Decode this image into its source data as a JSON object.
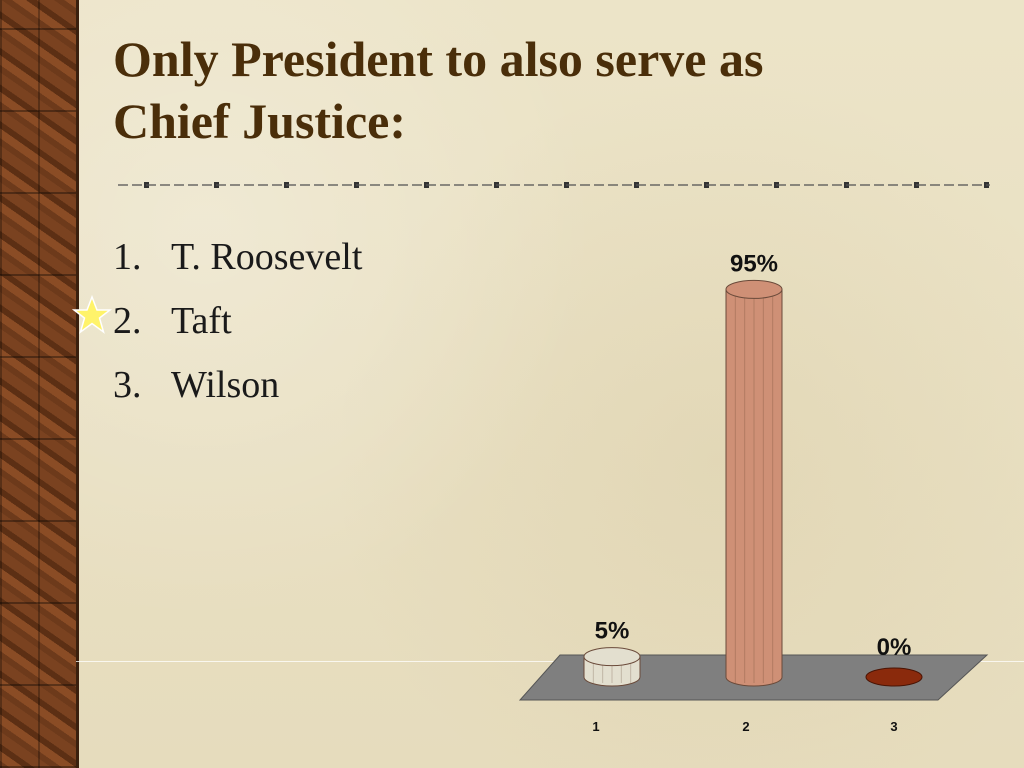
{
  "slide": {
    "title_lines": [
      "Only President to also serve as",
      "Chief Justice:"
    ],
    "answers": [
      {
        "number": "1.",
        "text": "T. Roosevelt"
      },
      {
        "number": "2.",
        "text": "Taft"
      },
      {
        "number": "3.",
        "text": "Wilson"
      }
    ],
    "correct_marker_icon": "star-icon",
    "colors": {
      "title": "#4a2e0a",
      "bar_1": "#e3dfcf",
      "bar_2": "#cf9076",
      "bar_3": "#8a2a0c",
      "floor": "#7f7f7f"
    }
  },
  "chart_data": {
    "type": "bar",
    "categories": [
      "1",
      "2",
      "3"
    ],
    "values": [
      5,
      95,
      0
    ],
    "data_labels": [
      "5%",
      "95%",
      "0%"
    ],
    "ylim": [
      0,
      100
    ],
    "title": "",
    "xlabel": "",
    "ylabel": "",
    "grid": false,
    "style": "3d-cylinder"
  }
}
